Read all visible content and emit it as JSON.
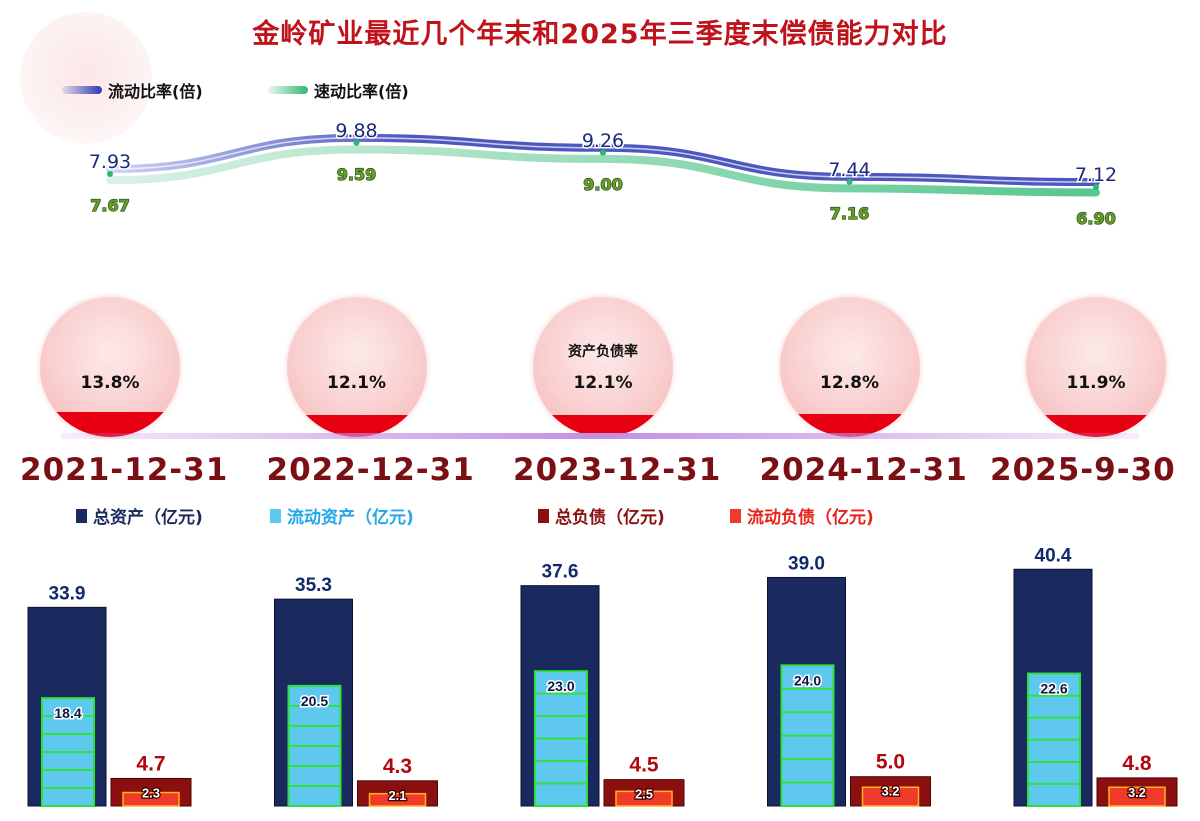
{
  "title": "金岭矿业最近几个年末和2025年三季度末偿债能力对比",
  "colors": {
    "title": "#c0121a",
    "current_ratio": "#2d3ab5",
    "quick_ratio": "#2eb872",
    "total_assets": "#1b2a5e",
    "current_assets": "#5ec8ef",
    "current_assets_grid": "#2fe23a",
    "total_liabilities": "#8b0f0f",
    "current_liabilities": "#f03a2a",
    "debt_ratio_fill": "#e60012",
    "date_text": "#7a0f14"
  },
  "legend_top": [
    {
      "label": "流动比率(倍)",
      "icon": "blue-line-icon"
    },
    {
      "label": "速动比率(倍)",
      "icon": "green-line-icon"
    }
  ],
  "legend_bottom": [
    {
      "label": "总资产（亿元)",
      "color": "#1b2a5e"
    },
    {
      "label": "流动资产（亿元)",
      "color": "#22a7e8"
    },
    {
      "label": "总负债（亿元)",
      "color": "#8b0f0f"
    },
    {
      "label": "流动负债（亿元)",
      "color": "#e8221a"
    }
  ],
  "debt_ratio_label": "资产负债率",
  "chart_data": {
    "type": "bar",
    "categories": [
      "2021-12-31",
      "2022-12-31",
      "2023-12-31",
      "2024-12-31",
      "2025-9-30"
    ],
    "series": [
      {
        "name": "总资产（亿元)",
        "values": [
          33.9,
          35.3,
          37.6,
          39.0,
          40.4
        ]
      },
      {
        "name": "流动资产（亿元)",
        "values": [
          18.4,
          20.5,
          23.0,
          24.0,
          22.6
        ]
      },
      {
        "name": "总负债（亿元)",
        "values": [
          4.7,
          4.3,
          4.5,
          5.0,
          4.8
        ]
      },
      {
        "name": "流动负债（亿元)",
        "values": [
          2.3,
          2.1,
          2.5,
          3.2,
          3.2
        ]
      },
      {
        "name": "流动比率(倍)",
        "values": [
          7.93,
          9.88,
          9.26,
          7.44,
          7.12
        ]
      },
      {
        "name": "速动比率(倍)",
        "values": [
          7.67,
          9.59,
          9.0,
          7.16,
          6.9
        ]
      },
      {
        "name": "资产负债率",
        "values": [
          13.8,
          12.1,
          12.1,
          12.8,
          11.9
        ]
      }
    ],
    "value_labels": {
      "total_assets": [
        "33.9",
        "35.3",
        "37.6",
        "39.0",
        "40.4"
      ],
      "current_assets": [
        "18.4",
        "20.5",
        "23.0",
        "24.0",
        "22.6"
      ],
      "total_liabilities": [
        "4.7",
        "4.3",
        "4.5",
        "5.0",
        "4.8"
      ],
      "current_liabilities": [
        "2.3",
        "2.1",
        "2.5",
        "3.2",
        "3.2"
      ],
      "current_ratio": [
        "7.93",
        "9.88",
        "9.26",
        "7.44",
        "7.12"
      ],
      "quick_ratio": [
        "7.67",
        "9.59",
        "9.00",
        "7.16",
        "6.90"
      ],
      "debt_ratio": [
        "13.8%",
        "12.1%",
        "12.1%",
        "12.8%",
        "11.9%"
      ]
    }
  }
}
